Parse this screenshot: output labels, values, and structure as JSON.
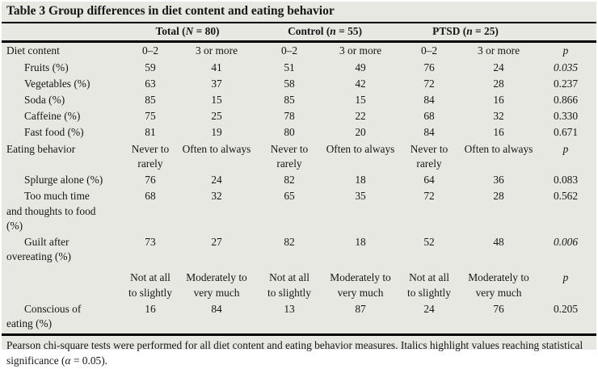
{
  "page": {
    "background": "#e8e8e2",
    "text_color": "#161616",
    "rule_color": "#000000"
  },
  "table": {
    "title": "Table 3 Group differences in diet content and eating behavior",
    "column_groups": [
      {
        "pre": "Total (",
        "var": "N",
        "post": " = 80)"
      },
      {
        "pre": "Control (",
        "var": "n",
        "post": " = 55)"
      },
      {
        "pre": "PTSD (",
        "var": "n",
        "post": " = 25)"
      }
    ],
    "subheaders": [
      {
        "label_lines": [
          "Diet content"
        ],
        "cells": [
          [
            "0–2"
          ],
          [
            "3 or more"
          ],
          [
            "0–2"
          ],
          [
            "3 or more"
          ],
          [
            "0–2"
          ],
          [
            "3 or more"
          ]
        ],
        "p": "p"
      },
      {
        "label_lines": [
          "Eating behavior"
        ],
        "cells": [
          [
            "Never to",
            "rarely"
          ],
          [
            "Often to always"
          ],
          [
            "Never to",
            "rarely"
          ],
          [
            "Often to always"
          ],
          [
            "Never to",
            "rarely"
          ],
          [
            "Often to always"
          ]
        ],
        "p": "p"
      },
      {
        "label_lines": [],
        "cells": [
          [
            "Not at all",
            "to slightly"
          ],
          [
            "Moderately to",
            "very much"
          ],
          [
            "Not at all",
            "to slightly"
          ],
          [
            "Moderately to",
            "very much"
          ],
          [
            "Not at all",
            "to slightly"
          ],
          [
            "Moderately to",
            "very much"
          ]
        ],
        "p": "p"
      }
    ],
    "rows": [
      {
        "label_lines": [
          "Fruits (%)"
        ],
        "values": [
          "59",
          "41",
          "51",
          "49",
          "76",
          "24"
        ],
        "p": "0.035",
        "significant": true
      },
      {
        "label_lines": [
          "Vegetables (%)"
        ],
        "values": [
          "63",
          "37",
          "58",
          "42",
          "72",
          "28"
        ],
        "p": "0.237",
        "significant": false
      },
      {
        "label_lines": [
          "Soda (%)"
        ],
        "values": [
          "85",
          "15",
          "85",
          "15",
          "84",
          "16"
        ],
        "p": "0.866",
        "significant": false
      },
      {
        "label_lines": [
          "Caffeine (%)"
        ],
        "values": [
          "75",
          "25",
          "78",
          "22",
          "68",
          "32"
        ],
        "p": "0.330",
        "significant": false
      },
      {
        "label_lines": [
          "Fast food (%)"
        ],
        "values": [
          "81",
          "19",
          "80",
          "20",
          "84",
          "16"
        ],
        "p": "0.671",
        "significant": false
      },
      {
        "label_lines": [
          "Splurge alone (%)"
        ],
        "values": [
          "76",
          "24",
          "82",
          "18",
          "64",
          "36"
        ],
        "p": "0.083",
        "significant": false
      },
      {
        "label_lines": [
          "Too much time",
          "and thoughts to food",
          "(%)"
        ],
        "values": [
          "68",
          "32",
          "65",
          "35",
          "72",
          "28"
        ],
        "p": "0.562",
        "significant": false
      },
      {
        "label_lines": [
          "Guilt after",
          "overeating (%)"
        ],
        "values": [
          "73",
          "27",
          "82",
          "18",
          "52",
          "48"
        ],
        "p": "0.006",
        "significant": true
      },
      {
        "label_lines": [
          "Conscious of",
          "eating (%)"
        ],
        "values": [
          "16",
          "84",
          "13",
          "87",
          "24",
          "76"
        ],
        "p": "0.205",
        "significant": false
      }
    ]
  },
  "footnote": {
    "text_before_alpha": "Pearson chi-square tests were performed for all diet content and eating behavior measures. Italics highlight values reaching statistical significance (",
    "alpha_symbol": "α",
    "text_after_alpha": " = 0.05)."
  }
}
